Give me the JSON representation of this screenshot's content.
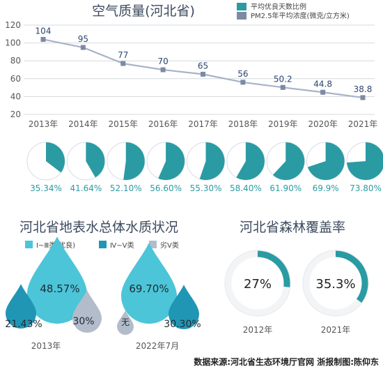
{
  "colors": {
    "teal": "#2a9ba3",
    "teal_light": "#e7f6f7",
    "line": "#a7b3c8",
    "marker": "#7d8aa3",
    "label_blue": "#2b4670",
    "axis_text": "#555555",
    "title": "#3c4a5e",
    "drop_light": "#4cc5d8",
    "drop_mid": "#2196b4",
    "drop_gray": "#b3bccb",
    "ring_track": "#f2f4f6"
  },
  "chart_data": [
    {
      "id": "air-quality",
      "type": "line",
      "title": "空气质量(河北省)",
      "legend": [
        {
          "label": "平均优良天数比例",
          "color": "#2a9ba3"
        },
        {
          "label": "PM2.5年平均浓度(微克/立方米)",
          "color": "#7d8aa3"
        }
      ],
      "x": [
        "2013年",
        "2014年",
        "2015年",
        "2016年",
        "2017年",
        "2018年",
        "2019年",
        "2020年",
        "2021年"
      ],
      "series": [
        {
          "name": "PM2.5年平均浓度(微克/立方米)",
          "values": [
            104,
            95,
            77,
            70,
            65,
            56,
            50.2,
            44.8,
            38.8
          ],
          "labels": [
            "104",
            "95",
            "77",
            "70",
            "65",
            "56",
            "50.2",
            "44.8",
            "38.8"
          ]
        }
      ],
      "yticks": [
        120,
        100,
        80,
        60,
        40,
        20
      ],
      "ylim": [
        20,
        120
      ],
      "grid": true
    },
    {
      "id": "good-days-ratio",
      "type": "pie",
      "series_name": "平均优良天数比例",
      "categories": [
        "2013年",
        "2014年",
        "2015年",
        "2016年",
        "2017年",
        "2018年",
        "2019年",
        "2020年",
        "2021年"
      ],
      "values": [
        35.34,
        41.64,
        52.1,
        56.6,
        55.3,
        58.4,
        61.9,
        69.9,
        73.8
      ],
      "labels": [
        "35.34%",
        "41.64%",
        "52.10%",
        "56.60%",
        "55.30%",
        "58.40%",
        "61.90%",
        "69.9%",
        "73.80%"
      ]
    },
    {
      "id": "surface-water",
      "type": "bar",
      "title": "河北省地表水总体水质状况",
      "legend": [
        {
          "label": "Ⅰ~Ⅲ类(优良)",
          "color": "#4cc5d8"
        },
        {
          "label": "Ⅳ~Ⅴ类",
          "color": "#2196b4"
        },
        {
          "label": "劣Ⅴ类",
          "color": "#b3bccb"
        }
      ],
      "groups": [
        {
          "label": "2013年",
          "values": [
            48.57,
            21.43,
            30
          ],
          "texts": [
            "48.57%",
            "21.43%",
            "30%"
          ]
        },
        {
          "label": "2022年7月",
          "values": [
            69.7,
            30.3,
            0
          ],
          "texts": [
            "69.70%",
            "30.30%",
            "无"
          ]
        }
      ]
    },
    {
      "id": "forest-cover",
      "type": "pie",
      "title": "河北省森林覆盖率",
      "categories": [
        "2012年",
        "2021年"
      ],
      "values": [
        27,
        35.3
      ],
      "labels": [
        "27%",
        "35.3%"
      ]
    }
  ],
  "footer": {
    "source": "数据来源:河北省生态环境厅官网 浙报制图:陈仰东"
  }
}
